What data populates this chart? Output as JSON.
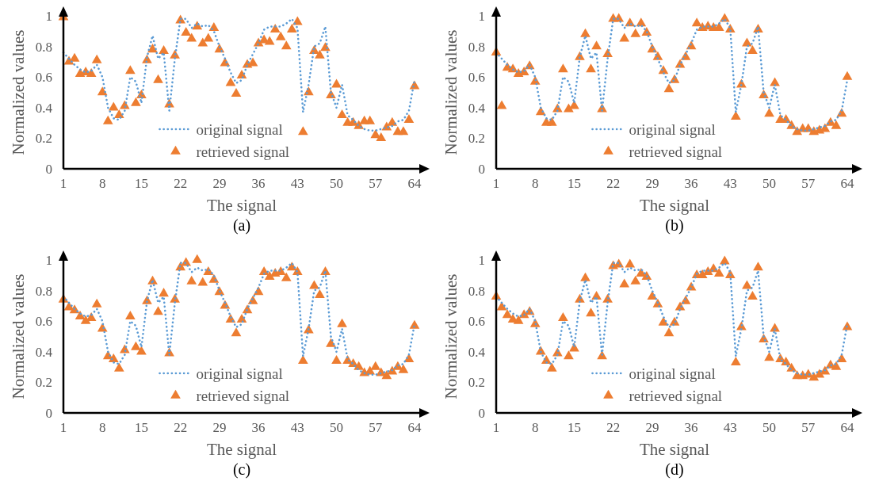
{
  "chart_data": [
    {
      "type": "line",
      "title": "(a)",
      "xlabel": "The signal",
      "ylabel": "Normalized values",
      "legend": "bottom",
      "xlim": [
        1,
        65
      ],
      "xticks": [
        1,
        8,
        15,
        22,
        29,
        36,
        43,
        50,
        57,
        64
      ],
      "ylim": [
        0,
        1
      ],
      "yticks": [
        0,
        0.2,
        0.4,
        0.6,
        0.8,
        1
      ],
      "x": [
        1,
        2,
        3,
        4,
        5,
        6,
        7,
        8,
        9,
        10,
        11,
        12,
        13,
        14,
        15,
        16,
        17,
        18,
        19,
        20,
        21,
        22,
        23,
        24,
        25,
        26,
        27,
        28,
        29,
        30,
        31,
        32,
        33,
        34,
        35,
        36,
        37,
        38,
        39,
        40,
        41,
        42,
        43,
        44,
        45,
        46,
        47,
        48,
        49,
        50,
        51,
        52,
        53,
        54,
        55,
        56,
        57,
        58,
        59,
        60,
        61,
        62,
        63,
        64
      ],
      "series": [
        {
          "name": "original signal",
          "line_style": "dotted",
          "marker": "none",
          "color": "#5b9bd5",
          "values": [
            0.76,
            0.72,
            0.68,
            0.65,
            0.63,
            0.64,
            0.68,
            0.6,
            0.4,
            0.33,
            0.32,
            0.38,
            0.6,
            0.57,
            0.43,
            0.73,
            0.87,
            0.72,
            0.76,
            0.38,
            0.72,
            0.98,
            0.98,
            0.92,
            0.95,
            0.93,
            0.94,
            0.9,
            0.8,
            0.72,
            0.63,
            0.56,
            0.58,
            0.68,
            0.75,
            0.82,
            0.91,
            0.93,
            0.93,
            0.93,
            0.95,
            0.98,
            0.92,
            0.37,
            0.55,
            0.8,
            0.82,
            0.93,
            0.5,
            0.4,
            0.55,
            0.35,
            0.32,
            0.28,
            0.26,
            0.25,
            0.25,
            0.26,
            0.27,
            0.28,
            0.31,
            0.32,
            0.38,
            0.58
          ]
        },
        {
          "name": "retrieved signal",
          "type": "scatter",
          "marker": "triangle",
          "color": "#ed7d31",
          "values": [
            0.99,
            0.7,
            0.72,
            0.62,
            0.63,
            0.62,
            0.71,
            0.5,
            0.31,
            0.4,
            0.35,
            0.41,
            0.64,
            0.43,
            0.48,
            0.71,
            0.78,
            0.58,
            0.77,
            0.42,
            0.74,
            0.97,
            0.89,
            0.85,
            0.93,
            0.82,
            0.85,
            0.92,
            0.78,
            0.69,
            0.56,
            0.49,
            0.61,
            0.68,
            0.69,
            0.82,
            0.84,
            0.83,
            0.91,
            0.86,
            0.8,
            0.91,
            0.96,
            0.24,
            0.5,
            0.77,
            0.74,
            0.79,
            0.48,
            0.55,
            0.35,
            0.3,
            0.3,
            0.28,
            0.31,
            0.31,
            0.22,
            0.2,
            0.27,
            0.3,
            0.24,
            0.24,
            0.32,
            0.54
          ]
        }
      ]
    },
    {
      "type": "line",
      "title": "(b)",
      "xlabel": "The signal",
      "ylabel": "Normalized values",
      "legend": "bottom",
      "xlim": [
        1,
        65
      ],
      "xticks": [
        1,
        8,
        15,
        22,
        29,
        36,
        43,
        50,
        57,
        64
      ],
      "ylim": [
        0,
        1
      ],
      "yticks": [
        0,
        0.2,
        0.4,
        0.6,
        0.8,
        1
      ],
      "x": [
        1,
        2,
        3,
        4,
        5,
        6,
        7,
        8,
        9,
        10,
        11,
        12,
        13,
        14,
        15,
        16,
        17,
        18,
        19,
        20,
        21,
        22,
        23,
        24,
        25,
        26,
        27,
        28,
        29,
        30,
        31,
        32,
        33,
        34,
        35,
        36,
        37,
        38,
        39,
        40,
        41,
        42,
        43,
        44,
        45,
        46,
        47,
        48,
        49,
        50,
        51,
        52,
        53,
        54,
        55,
        56,
        57,
        58,
        59,
        60,
        61,
        62,
        63,
        64
      ],
      "series": [
        {
          "name": "original signal",
          "line_style": "dotted",
          "marker": "none",
          "color": "#5b9bd5",
          "values": [
            0.76,
            0.72,
            0.68,
            0.65,
            0.63,
            0.64,
            0.68,
            0.6,
            0.4,
            0.33,
            0.32,
            0.38,
            0.6,
            0.57,
            0.43,
            0.73,
            0.87,
            0.72,
            0.76,
            0.38,
            0.72,
            0.98,
            0.98,
            0.92,
            0.95,
            0.93,
            0.94,
            0.9,
            0.8,
            0.72,
            0.63,
            0.56,
            0.58,
            0.68,
            0.75,
            0.82,
            0.91,
            0.93,
            0.93,
            0.93,
            0.95,
            0.98,
            0.92,
            0.37,
            0.55,
            0.8,
            0.82,
            0.93,
            0.5,
            0.4,
            0.55,
            0.35,
            0.32,
            0.28,
            0.26,
            0.25,
            0.25,
            0.26,
            0.27,
            0.28,
            0.31,
            0.32,
            0.38,
            0.58
          ]
        },
        {
          "name": "retrieved signal",
          "type": "scatter",
          "marker": "triangle",
          "color": "#ed7d31",
          "values": [
            0.76,
            0.41,
            0.66,
            0.65,
            0.62,
            0.63,
            0.67,
            0.57,
            0.37,
            0.3,
            0.3,
            0.39,
            0.65,
            0.39,
            0.41,
            0.73,
            0.88,
            0.65,
            0.8,
            0.39,
            0.75,
            0.98,
            0.98,
            0.85,
            0.95,
            0.88,
            0.95,
            0.89,
            0.78,
            0.73,
            0.64,
            0.52,
            0.58,
            0.68,
            0.73,
            0.8,
            0.95,
            0.92,
            0.93,
            0.92,
            0.92,
            0.98,
            0.91,
            0.34,
            0.55,
            0.82,
            0.77,
            0.91,
            0.48,
            0.36,
            0.56,
            0.32,
            0.32,
            0.28,
            0.24,
            0.26,
            0.26,
            0.24,
            0.25,
            0.26,
            0.3,
            0.28,
            0.36,
            0.6
          ]
        }
      ]
    },
    {
      "type": "line",
      "title": "(c)",
      "xlabel": "The signal",
      "ylabel": "Normalized values",
      "legend": "bottom",
      "xlim": [
        1,
        65
      ],
      "xticks": [
        1,
        8,
        15,
        22,
        29,
        36,
        43,
        50,
        57,
        64
      ],
      "ylim": [
        0,
        1
      ],
      "yticks": [
        0,
        0.2,
        0.4,
        0.6,
        0.8,
        1
      ],
      "x": [
        1,
        2,
        3,
        4,
        5,
        6,
        7,
        8,
        9,
        10,
        11,
        12,
        13,
        14,
        15,
        16,
        17,
        18,
        19,
        20,
        21,
        22,
        23,
        24,
        25,
        26,
        27,
        28,
        29,
        30,
        31,
        32,
        33,
        34,
        35,
        36,
        37,
        38,
        39,
        40,
        41,
        42,
        43,
        44,
        45,
        46,
        47,
        48,
        49,
        50,
        51,
        52,
        53,
        54,
        55,
        56,
        57,
        58,
        59,
        60,
        61,
        62,
        63,
        64
      ],
      "series": [
        {
          "name": "original signal",
          "line_style": "dotted",
          "marker": "none",
          "color": "#5b9bd5",
          "values": [
            0.76,
            0.72,
            0.68,
            0.65,
            0.63,
            0.64,
            0.68,
            0.6,
            0.4,
            0.33,
            0.32,
            0.38,
            0.6,
            0.57,
            0.43,
            0.73,
            0.87,
            0.72,
            0.76,
            0.38,
            0.72,
            0.98,
            0.98,
            0.92,
            0.95,
            0.93,
            0.94,
            0.9,
            0.8,
            0.72,
            0.63,
            0.56,
            0.58,
            0.68,
            0.75,
            0.82,
            0.91,
            0.93,
            0.93,
            0.93,
            0.95,
            0.98,
            0.92,
            0.37,
            0.55,
            0.8,
            0.82,
            0.93,
            0.5,
            0.4,
            0.55,
            0.35,
            0.32,
            0.28,
            0.26,
            0.25,
            0.25,
            0.26,
            0.27,
            0.28,
            0.31,
            0.32,
            0.38,
            0.58
          ]
        },
        {
          "name": "retrieved signal",
          "type": "scatter",
          "marker": "triangle",
          "color": "#ed7d31",
          "values": [
            0.74,
            0.69,
            0.67,
            0.63,
            0.6,
            0.62,
            0.71,
            0.55,
            0.37,
            0.35,
            0.29,
            0.41,
            0.63,
            0.43,
            0.4,
            0.73,
            0.86,
            0.66,
            0.78,
            0.39,
            0.74,
            0.95,
            0.98,
            0.86,
            1,
            0.85,
            0.92,
            0.87,
            0.79,
            0.7,
            0.61,
            0.52,
            0.61,
            0.67,
            0.73,
            0.79,
            0.92,
            0.89,
            0.91,
            0.92,
            0.88,
            0.95,
            0.92,
            0.34,
            0.54,
            0.83,
            0.77,
            0.92,
            0.45,
            0.34,
            0.58,
            0.34,
            0.32,
            0.3,
            0.26,
            0.27,
            0.3,
            0.26,
            0.24,
            0.27,
            0.3,
            0.28,
            0.35,
            0.57
          ]
        }
      ]
    },
    {
      "type": "line",
      "title": "(d)",
      "xlabel": "The signal",
      "ylabel": "Normalized values",
      "legend": "bottom",
      "xlim": [
        1,
        65
      ],
      "xticks": [
        1,
        8,
        15,
        22,
        29,
        36,
        43,
        50,
        57,
        64
      ],
      "ylim": [
        0,
        1
      ],
      "yticks": [
        0,
        0.2,
        0.4,
        0.6,
        0.8,
        1
      ],
      "x": [
        1,
        2,
        3,
        4,
        5,
        6,
        7,
        8,
        9,
        10,
        11,
        12,
        13,
        14,
        15,
        16,
        17,
        18,
        19,
        20,
        21,
        22,
        23,
        24,
        25,
        26,
        27,
        28,
        29,
        30,
        31,
        32,
        33,
        34,
        35,
        36,
        37,
        38,
        39,
        40,
        41,
        42,
        43,
        44,
        45,
        46,
        47,
        48,
        49,
        50,
        51,
        52,
        53,
        54,
        55,
        56,
        57,
        58,
        59,
        60,
        61,
        62,
        63,
        64
      ],
      "series": [
        {
          "name": "original signal",
          "line_style": "dotted",
          "marker": "none",
          "color": "#5b9bd5",
          "values": [
            0.76,
            0.72,
            0.68,
            0.65,
            0.63,
            0.64,
            0.68,
            0.6,
            0.4,
            0.33,
            0.32,
            0.38,
            0.6,
            0.57,
            0.43,
            0.73,
            0.87,
            0.72,
            0.76,
            0.38,
            0.72,
            0.98,
            0.98,
            0.92,
            0.95,
            0.93,
            0.94,
            0.9,
            0.8,
            0.72,
            0.63,
            0.56,
            0.58,
            0.68,
            0.75,
            0.82,
            0.91,
            0.93,
            0.93,
            0.93,
            0.95,
            0.98,
            0.92,
            0.37,
            0.55,
            0.8,
            0.82,
            0.93,
            0.5,
            0.4,
            0.55,
            0.35,
            0.32,
            0.28,
            0.26,
            0.25,
            0.25,
            0.26,
            0.27,
            0.28,
            0.31,
            0.32,
            0.38,
            0.58
          ]
        },
        {
          "name": "retrieved signal",
          "type": "scatter",
          "marker": "triangle",
          "color": "#ed7d31",
          "values": [
            0.76,
            0.69,
            0.64,
            0.61,
            0.6,
            0.64,
            0.66,
            0.58,
            0.4,
            0.34,
            0.29,
            0.39,
            0.62,
            0.37,
            0.42,
            0.74,
            0.88,
            0.65,
            0.76,
            0.37,
            0.74,
            0.96,
            0.97,
            0.84,
            0.97,
            0.86,
            0.91,
            0.89,
            0.76,
            0.71,
            0.59,
            0.52,
            0.59,
            0.69,
            0.73,
            0.82,
            0.9,
            0.9,
            0.92,
            0.94,
            0.91,
            0.99,
            0.9,
            0.33,
            0.56,
            0.83,
            0.76,
            0.95,
            0.48,
            0.36,
            0.55,
            0.35,
            0.33,
            0.29,
            0.24,
            0.24,
            0.25,
            0.23,
            0.25,
            0.27,
            0.31,
            0.3,
            0.35,
            0.56
          ]
        }
      ]
    }
  ]
}
